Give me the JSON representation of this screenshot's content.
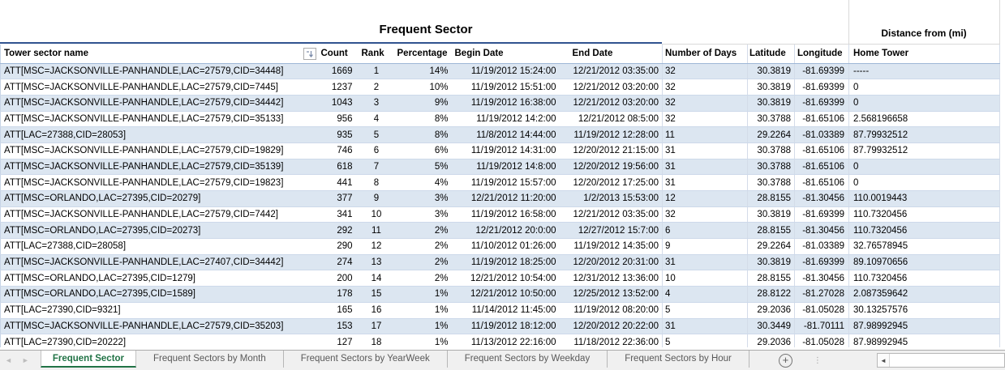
{
  "title": "Frequent Sector",
  "distance_header": "Distance from (mi)",
  "table": {
    "headers": [
      "Tower sector name",
      "Count",
      "Rank",
      "Percentage",
      "Begin Date",
      "End Date",
      "Number of Days",
      "Latitude",
      "Longitude",
      "Home Tower"
    ],
    "sort_indicator_column": "Tower sector name",
    "rows": [
      [
        "ATT[MSC=JACKSONVILLE-PANHANDLE,LAC=27579,CID=34448]",
        "1669",
        "1",
        "14%",
        "11/19/2012 15:24:00",
        "12/21/2012 03:35:00",
        "32",
        "30.3819",
        "-81.69399",
        "-----"
      ],
      [
        "ATT[MSC=JACKSONVILLE-PANHANDLE,LAC=27579,CID=7445]",
        "1237",
        "2",
        "10%",
        "11/19/2012 15:51:00",
        "12/21/2012 03:20:00",
        "32",
        "30.3819",
        "-81.69399",
        "0"
      ],
      [
        "ATT[MSC=JACKSONVILLE-PANHANDLE,LAC=27579,CID=34442]",
        "1043",
        "3",
        "9%",
        "11/19/2012 16:38:00",
        "12/21/2012 03:20:00",
        "32",
        "30.3819",
        "-81.69399",
        "0"
      ],
      [
        "ATT[MSC=JACKSONVILLE-PANHANDLE,LAC=27579,CID=35133]",
        "956",
        "4",
        "8%",
        "11/19/2012 14:2:00",
        "12/21/2012 08:5:00",
        "32",
        "30.3788",
        "-81.65106",
        "2.568196658"
      ],
      [
        "ATT[LAC=27388,CID=28053]",
        "935",
        "5",
        "8%",
        "11/8/2012 14:44:00",
        "11/19/2012 12:28:00",
        "11",
        "29.2264",
        "-81.03389",
        "87.79932512"
      ],
      [
        "ATT[MSC=JACKSONVILLE-PANHANDLE,LAC=27579,CID=19829]",
        "746",
        "6",
        "6%",
        "11/19/2012 14:31:00",
        "12/20/2012 21:15:00",
        "31",
        "30.3788",
        "-81.65106",
        "87.79932512"
      ],
      [
        "ATT[MSC=JACKSONVILLE-PANHANDLE,LAC=27579,CID=35139]",
        "618",
        "7",
        "5%",
        "11/19/2012 14:8:00",
        "12/20/2012 19:56:00",
        "31",
        "30.3788",
        "-81.65106",
        "0"
      ],
      [
        "ATT[MSC=JACKSONVILLE-PANHANDLE,LAC=27579,CID=19823]",
        "441",
        "8",
        "4%",
        "11/19/2012 15:57:00",
        "12/20/2012 17:25:00",
        "31",
        "30.3788",
        "-81.65106",
        "0"
      ],
      [
        "ATT[MSC=ORLANDO,LAC=27395,CID=20279]",
        "377",
        "9",
        "3%",
        "12/21/2012 11:20:00",
        "1/2/2013 15:53:00",
        "12",
        "28.8155",
        "-81.30456",
        "110.0019443"
      ],
      [
        "ATT[MSC=JACKSONVILLE-PANHANDLE,LAC=27579,CID=7442]",
        "341",
        "10",
        "3%",
        "11/19/2012 16:58:00",
        "12/21/2012 03:35:00",
        "32",
        "30.3819",
        "-81.69399",
        "110.7320456"
      ],
      [
        "ATT[MSC=ORLANDO,LAC=27395,CID=20273]",
        "292",
        "11",
        "2%",
        "12/21/2012 20:0:00",
        "12/27/2012 15:7:00",
        "6",
        "28.8155",
        "-81.30456",
        "110.7320456"
      ],
      [
        "ATT[LAC=27388,CID=28058]",
        "290",
        "12",
        "2%",
        "11/10/2012 01:26:00",
        "11/19/2012 14:35:00",
        "9",
        "29.2264",
        "-81.03389",
        "32.76578945"
      ],
      [
        "ATT[MSC=JACKSONVILLE-PANHANDLE,LAC=27407,CID=34442]",
        "274",
        "13",
        "2%",
        "11/19/2012 18:25:00",
        "12/20/2012 20:31:00",
        "31",
        "30.3819",
        "-81.69399",
        "89.10970656"
      ],
      [
        "ATT[MSC=ORLANDO,LAC=27395,CID=1279]",
        "200",
        "14",
        "2%",
        "12/21/2012 10:54:00",
        "12/31/2012 13:36:00",
        "10",
        "28.8155",
        "-81.30456",
        "110.7320456"
      ],
      [
        "ATT[MSC=ORLANDO,LAC=27395,CID=1589]",
        "178",
        "15",
        "1%",
        "12/21/2012 10:50:00",
        "12/25/2012 13:52:00",
        "4",
        "28.8122",
        "-81.27028",
        "2.087359642"
      ],
      [
        "ATT[LAC=27390,CID=9321]",
        "165",
        "16",
        "1%",
        "11/14/2012 11:45:00",
        "11/19/2012 08:20:00",
        "5",
        "29.2036",
        "-81.05028",
        "30.13257576"
      ],
      [
        "ATT[MSC=JACKSONVILLE-PANHANDLE,LAC=27579,CID=35203]",
        "153",
        "17",
        "1%",
        "11/19/2012 18:12:00",
        "12/20/2012 20:22:00",
        "31",
        "30.3449",
        "-81.70111",
        "87.98992945"
      ],
      [
        "ATT[LAC=27390,CID=20222]",
        "127",
        "18",
        "1%",
        "11/13/2012 22:16:00",
        "11/18/2012 22:36:00",
        "5",
        "29.2036",
        "-81.05028",
        "87.98992945"
      ]
    ]
  },
  "tabs": {
    "active": "Frequent Sector",
    "items": [
      "Frequent Sector",
      "Frequent Sectors by Month",
      "Frequent Sectors by YearWeek",
      "Frequent Sectors by Weekday",
      "Frequent Sectors by Hour"
    ]
  },
  "icons": {
    "tab_scroll_left": "◄",
    "tab_scroll_right": "►",
    "add_sheet": "+",
    "tab_options_dots": "⋮",
    "hscroll_left": "◄"
  },
  "colors": {
    "stripe": "#dce6f1",
    "titlerule": "#31538f",
    "green": "#217346",
    "tabbg": "#f0f0f0",
    "tabtext": "#595959"
  }
}
